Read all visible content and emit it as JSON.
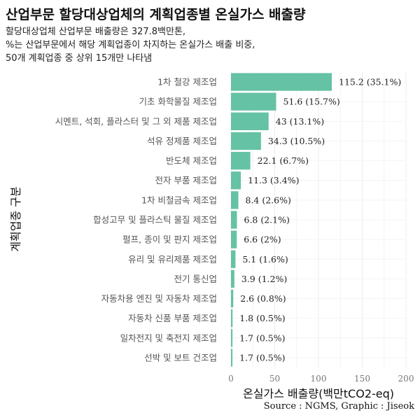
{
  "title": "산업부문 할당대상업체의 계획업종별 온실가스 배출량",
  "subtitle_lines": [
    "할당대상업체 산업부문 배출량은 327.8백만톤,",
    "%는 산업부문에서 해당 계획업종이 차지하는 온실가스 배출 비중,",
    "50개 계획업종 중 상위 15개만 나타냄"
  ],
  "caption": "Source : NGMS, Graphic : Jiseok",
  "colors": {
    "bar": "#66c2a5",
    "grid": "#ececec",
    "tick_text": "#777777"
  },
  "chart_data": {
    "type": "bar",
    "orientation": "horizontal",
    "xlabel": "온실가스 배출량(백만tCO2-eq)",
    "ylabel": "계획업종 구분",
    "xlim": [
      0,
      200
    ],
    "xticks": [
      0,
      50,
      100,
      150,
      200
    ],
    "grid": true,
    "categories": [
      "1차 철강 제조업",
      "기초 화학물질 제조업",
      "시멘트, 석회, 플라스터 및 그 외 제품 제조업",
      "석유 정제품 제조업",
      "반도체 제조업",
      "전자 부품 제조업",
      "1차 비철금속 제조업",
      "합성고무 및 플라스틱 물질 제조업",
      "펄프, 종이 및 판지 제조업",
      "유리 및 유리제품 제조업",
      "전기 통신업",
      "자동차용 엔진 및 자동차 제조업",
      "자동차 신품 부품 제조업",
      "일차전지 및 축전지 제조업",
      "선박 및 보트 건조업"
    ],
    "values": [
      115.2,
      51.6,
      43,
      34.3,
      22.1,
      11.3,
      8.4,
      6.8,
      6.6,
      5.1,
      3.9,
      2.6,
      1.8,
      1.7,
      1.7
    ],
    "labels": [
      "115.2 (35.1%)",
      "51.6 (15.7%)",
      "43 (13.1%)",
      "34.3 (10.5%)",
      "22.1 (6.7%)",
      "11.3 (3.4%)",
      "8.4 (2.6%)",
      "6.8 (2.1%)",
      "6.6 (2%)",
      "5.1 (1.6%)",
      "3.9 (1.2%)",
      "2.6 (0.8%)",
      "1.8 (0.5%)",
      "1.7 (0.5%)",
      "1.7 (0.5%)"
    ]
  }
}
